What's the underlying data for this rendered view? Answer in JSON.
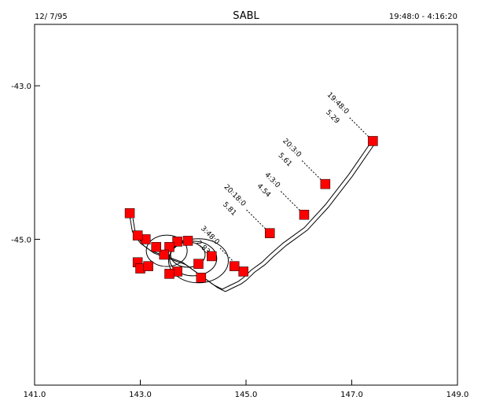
{
  "header": {
    "date": "12/ 7/95",
    "title": "SABL",
    "time_range": "19:48:0 - 4:16:20"
  },
  "colors": {
    "marker": "#ff0000",
    "track": "#000000"
  },
  "chart_data": {
    "type": "scatter",
    "title": "SABL",
    "xlabel": "",
    "ylabel": "",
    "xlim": [
      141.0,
      149.0
    ],
    "ylim": [
      -46.9,
      -42.2
    ],
    "grid": false,
    "x_ticks": [
      141.0,
      143.0,
      145.0,
      147.0,
      149.0
    ],
    "x_tick_labels": [
      "141.0",
      "143.0",
      "145.0",
      "147.0",
      "149.0"
    ],
    "y_ticks": [
      -43.0,
      -45.0
    ],
    "y_tick_labels": [
      "-43.0",
      "-45.0"
    ],
    "track": [
      [
        147.35,
        -43.75
      ],
      [
        146.95,
        -44.15
      ],
      [
        146.5,
        -44.55
      ],
      [
        146.1,
        -44.85
      ],
      [
        145.7,
        -45.05
      ],
      [
        145.45,
        -45.2
      ],
      [
        145.3,
        -45.3
      ],
      [
        145.1,
        -45.4
      ],
      [
        144.95,
        -45.5
      ],
      [
        144.85,
        -45.55
      ],
      [
        144.7,
        -45.6
      ],
      [
        144.55,
        -45.65
      ],
      [
        144.4,
        -45.6
      ],
      [
        144.2,
        -45.5
      ],
      [
        144.0,
        -45.4
      ],
      [
        143.8,
        -45.3
      ],
      [
        143.6,
        -45.25
      ],
      [
        143.4,
        -45.2
      ],
      [
        143.2,
        -45.15
      ],
      [
        143.0,
        -45.05
      ],
      [
        142.85,
        -44.9
      ],
      [
        142.8,
        -44.7
      ]
    ],
    "points": [
      {
        "x": 147.4,
        "y": -43.72,
        "labels": [
          "19:48:0",
          "5.29"
        ]
      },
      {
        "x": 146.5,
        "y": -44.28,
        "labels": [
          "20:3:0",
          "5.61"
        ]
      },
      {
        "x": 146.1,
        "y": -44.68,
        "labels": [
          "4:3:0",
          "4.54"
        ]
      },
      {
        "x": 145.45,
        "y": -44.92,
        "labels": [
          "20:18:0",
          "5.81"
        ]
      },
      {
        "x": 144.95,
        "y": -45.42,
        "labels": [
          "3:48:0",
          "2.83"
        ]
      },
      {
        "x": 144.78,
        "y": -45.35,
        "labels": []
      },
      {
        "x": 144.35,
        "y": -45.22,
        "labels": []
      },
      {
        "x": 144.15,
        "y": -45.5,
        "labels": []
      },
      {
        "x": 144.1,
        "y": -45.32,
        "labels": []
      },
      {
        "x": 143.9,
        "y": -45.02,
        "labels": []
      },
      {
        "x": 143.7,
        "y": -45.03,
        "labels": []
      },
      {
        "x": 143.55,
        "y": -45.1,
        "labels": []
      },
      {
        "x": 143.45,
        "y": -45.2,
        "labels": []
      },
      {
        "x": 143.7,
        "y": -45.42,
        "labels": []
      },
      {
        "x": 143.55,
        "y": -45.45,
        "labels": []
      },
      {
        "x": 143.3,
        "y": -45.1,
        "labels": []
      },
      {
        "x": 143.1,
        "y": -45.0,
        "labels": []
      },
      {
        "x": 142.95,
        "y": -44.95,
        "labels": []
      },
      {
        "x": 142.95,
        "y": -45.3,
        "labels": []
      },
      {
        "x": 143.0,
        "y": -45.38,
        "labels": []
      },
      {
        "x": 143.15,
        "y": -45.35,
        "labels": []
      },
      {
        "x": 142.8,
        "y": -44.66,
        "labels": []
      }
    ]
  }
}
